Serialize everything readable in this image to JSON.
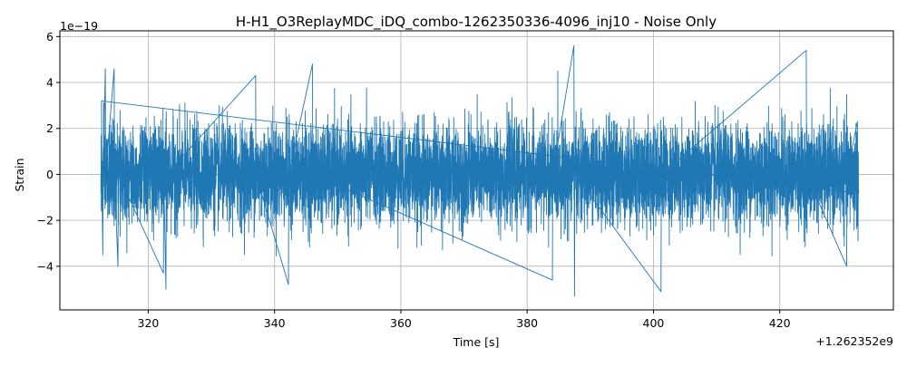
{
  "chart_data": {
    "type": "line",
    "title": "H-H1_O3ReplayMDC_iDQ_combo-1262350336-4096_inj10 - Noise Only",
    "xlabel": "Time [s]",
    "ylabel": "Strain",
    "x_offset_label": "+1.262352e9",
    "y_scale_label": "1e−19",
    "xlim": [
      1262352306.0,
      1262352438.0
    ],
    "ylim": [
      -5.9e-19,
      6.25e-19
    ],
    "grid": true,
    "legend": "none",
    "x_ticks": [
      {
        "value": 1262352320,
        "label": "320"
      },
      {
        "value": 1262352340,
        "label": "340"
      },
      {
        "value": 1262352360,
        "label": "360"
      },
      {
        "value": 1262352380,
        "label": "380"
      },
      {
        "value": 1262352400,
        "label": "400"
      },
      {
        "value": 1262352420,
        "label": "420"
      }
    ],
    "y_ticks": [
      {
        "value": -4e-19,
        "label": "−4"
      },
      {
        "value": -2e-19,
        "label": "−2"
      },
      {
        "value": 0,
        "label": "0"
      },
      {
        "value": 2e-19,
        "label": "2"
      },
      {
        "value": 4e-19,
        "label": "4"
      },
      {
        "value": 6e-19,
        "label": "6"
      }
    ],
    "series": [
      {
        "color": "#1f77b4",
        "x_start": 1262352312.5,
        "x_end": 1262352432.5,
        "description_points": [
          {
            "x": 1262352312.6,
            "y": 3.2e-19
          },
          {
            "x": 1262352312.8,
            "y": -3.5e-19
          },
          {
            "x": 1262352313.2,
            "y": 4.6e-19
          },
          {
            "x": 1262352314.6,
            "y": 4.6e-19
          },
          {
            "x": 1262352315.2,
            "y": -4e-19
          },
          {
            "x": 1262352322.4,
            "y": -4.3e-19
          },
          {
            "x": 1262352322.8,
            "y": -5e-19
          },
          {
            "x": 1262352337.0,
            "y": 4.3e-19
          },
          {
            "x": 1262352342.2,
            "y": -4.8e-19
          },
          {
            "x": 1262352346.0,
            "y": 4.8e-19
          },
          {
            "x": 1262352384.0,
            "y": -4.6e-19
          },
          {
            "x": 1262352387.4,
            "y": 5.6e-19
          },
          {
            "x": 1262352387.5,
            "y": -5.3e-19
          },
          {
            "x": 1262352401.2,
            "y": -5.1e-19
          },
          {
            "x": 1262352424.2,
            "y": 5.4e-19
          },
          {
            "x": 1262352430.6,
            "y": -4e-19
          },
          {
            "x": 1262352432.3,
            "y": 2.3e-19
          },
          {
            "x": 1262352432.4,
            "y": -2.9e-19
          }
        ]
      }
    ]
  }
}
